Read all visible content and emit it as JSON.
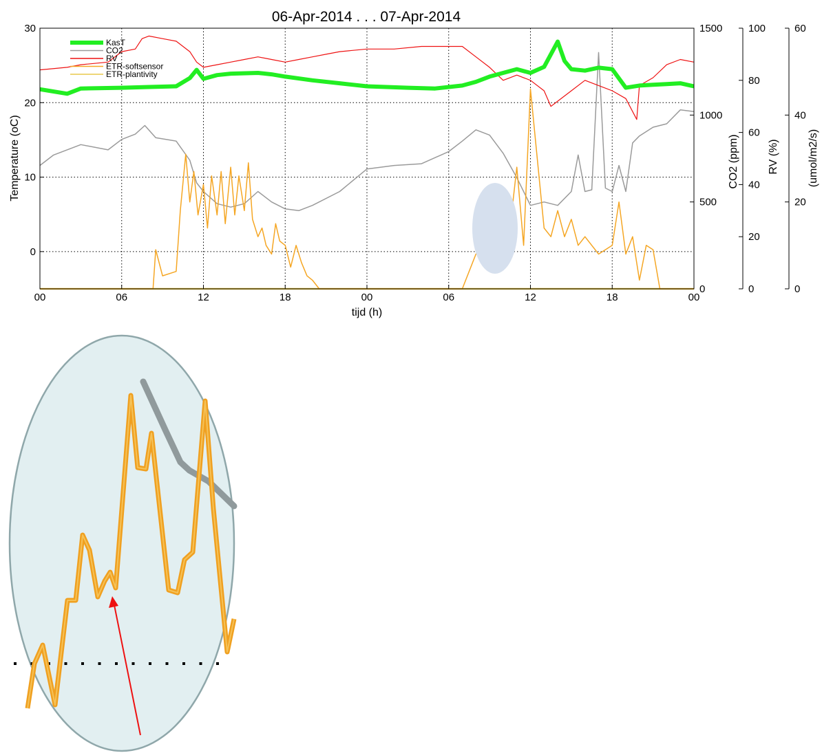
{
  "chart_data": {
    "type": "line",
    "title": "06-Apr-2014 . . . 07-Apr-2014",
    "xlabel": "tijd (h)",
    "x_range": [
      0,
      48
    ],
    "x_tick_labels": [
      "00",
      "06",
      "12",
      "18",
      "00",
      "06",
      "12",
      "18",
      "00"
    ],
    "grid": true,
    "legend_position": "top-left",
    "axes": {
      "temperature": {
        "label": "Temperature (oC)",
        "range": [
          -5,
          30
        ],
        "ticks": [
          "0",
          "10",
          "20",
          "30"
        ]
      },
      "co2": {
        "label": "CO2 (ppm)",
        "range": [
          0,
          1500
        ],
        "ticks": [
          "0",
          "500",
          "1000",
          "1500"
        ]
      },
      "rv": {
        "label": "RV (%)",
        "range": [
          0,
          100
        ],
        "ticks": [
          "0",
          "20",
          "40",
          "60",
          "80",
          "100"
        ]
      },
      "etr": {
        "label": "(umol/m2/s)",
        "range": [
          0,
          60
        ],
        "ticks": [
          "0",
          "20",
          "40",
          "60"
        ]
      }
    },
    "series": [
      {
        "name": "KasT",
        "axis": "temperature",
        "color": "#22ee22",
        "x": [
          0,
          2,
          3,
          6,
          8,
          10,
          11,
          11.5,
          12,
          13,
          14,
          16,
          17,
          18,
          20,
          22,
          24,
          27,
          29,
          31,
          32,
          33,
          35,
          36,
          37,
          38,
          38.5,
          39,
          40,
          41,
          42,
          43,
          44,
          45,
          46,
          47,
          48
        ],
        "y": [
          21.8,
          21.2,
          21.9,
          22.0,
          22.1,
          22.2,
          23.3,
          24.4,
          23.2,
          23.7,
          23.9,
          24.0,
          23.8,
          23.5,
          23.0,
          22.6,
          22.2,
          22.0,
          21.9,
          22.3,
          22.8,
          23.5,
          24.5,
          24.0,
          24.8,
          28.2,
          25.6,
          24.5,
          24.3,
          24.7,
          24.5,
          22.0,
          22.3,
          22.4,
          22.5,
          22.6,
          22.2
        ]
      },
      {
        "name": "CO2",
        "axis": "co2",
        "color": "#9a9a9a",
        "x": [
          0,
          1,
          3,
          5,
          6,
          7,
          7.7,
          8.5,
          10,
          11,
          11.5,
          12,
          13,
          14,
          15,
          16,
          17,
          18,
          19,
          20,
          22,
          24,
          26,
          28,
          30,
          31,
          32,
          33,
          34,
          35,
          36,
          37,
          38,
          39,
          39.5,
          40,
          40.5,
          41,
          41.5,
          42,
          42.5,
          43,
          43.5,
          44,
          45,
          46,
          47,
          48
        ],
        "y": [
          710,
          770,
          830,
          800,
          860,
          890,
          940,
          870,
          850,
          740,
          610,
          560,
          490,
          470,
          490,
          560,
          500,
          460,
          450,
          480,
          560,
          690,
          710,
          720,
          790,
          850,
          915,
          885,
          780,
          640,
          480,
          500,
          480,
          560,
          770,
          560,
          570,
          1360,
          580,
          560,
          710,
          560,
          840,
          880,
          930,
          950,
          1030,
          1020
        ]
      },
      {
        "name": "RV",
        "axis": "rv",
        "color": "#ee1111",
        "x": [
          0,
          2,
          3,
          5,
          6,
          7,
          7.5,
          8,
          9,
          10,
          11,
          11.5,
          12,
          13,
          14,
          15,
          16,
          17,
          18,
          19,
          20,
          21,
          22,
          24,
          26,
          28,
          30,
          31,
          32,
          33,
          34,
          35,
          36,
          37,
          37.5,
          38,
          39,
          40,
          41,
          42,
          43,
          43.8,
          44,
          45,
          46,
          47,
          48
        ],
        "y": [
          84,
          85,
          86,
          87,
          91,
          92,
          96,
          97,
          96,
          95,
          91,
          87,
          85,
          86,
          87,
          88,
          89,
          88,
          87,
          88,
          89,
          90,
          91,
          92,
          92,
          93,
          93,
          93,
          89,
          85,
          80,
          82,
          80,
          76,
          70,
          72,
          76,
          80,
          78,
          76,
          73,
          65,
          78,
          81,
          86,
          88,
          87
        ]
      },
      {
        "name": "ETR-softsensor",
        "axis": "etr",
        "color": "#f5a623",
        "x": [
          0,
          8,
          8.3,
          8.5,
          9,
          10,
          10.3,
          10.7,
          11,
          11.3,
          11.6,
          12,
          12.3,
          12.6,
          13,
          13.3,
          13.6,
          14,
          14.3,
          14.6,
          15,
          15.3,
          15.6,
          16,
          16.3,
          16.6,
          17,
          17.3,
          17.6,
          18,
          18.4,
          18.8,
          19.2,
          19.6,
          20,
          20.5,
          21,
          22,
          24,
          30,
          31,
          32,
          33,
          34,
          34.5,
          35,
          35.5,
          36,
          36.5,
          37,
          37.5,
          38,
          38.5,
          39,
          39.5,
          40,
          41,
          42,
          42.5,
          43,
          43.5,
          44,
          44.5,
          45,
          45.5,
          46,
          48
        ],
        "y": [
          0,
          0,
          0,
          9,
          3,
          4,
          18,
          31,
          20,
          27,
          17,
          24,
          14,
          26,
          17,
          27,
          15,
          28,
          17,
          26,
          18,
          29,
          16,
          12,
          14,
          10,
          8,
          15,
          11,
          10,
          5,
          10,
          6,
          3,
          2,
          0,
          0,
          0,
          0,
          0,
          0,
          8,
          11,
          16,
          14,
          28,
          10,
          46,
          30,
          14,
          12,
          18,
          12,
          16,
          10,
          12,
          8,
          10,
          20,
          8,
          12,
          2,
          10,
          9,
          0,
          0,
          0
        ]
      },
      {
        "name": "ETR-plantivity",
        "axis": "etr",
        "color": "#e8c84a",
        "x": [
          0,
          48
        ],
        "y": [
          0,
          0
        ]
      }
    ],
    "annotations": [
      {
        "kind": "highlight-ellipse",
        "x": 33.9,
        "y_temperature": 3.4
      },
      {
        "kind": "zoom-inset",
        "description": ""
      }
    ]
  }
}
